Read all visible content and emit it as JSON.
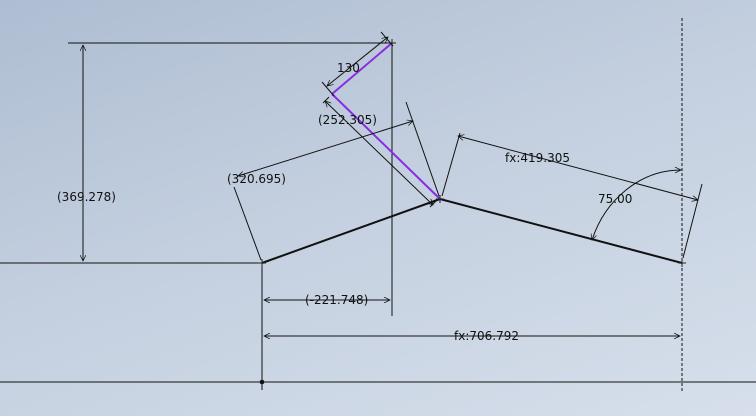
{
  "dimensions": {
    "d_130": "130",
    "d_252": "(252.305)",
    "d_369": "(369.278)",
    "d_320": "(320.695)",
    "d_419": "fx:419.305",
    "d_75": "75.00",
    "d_221": "(-221.748)",
    "d_706": "fx:706.792"
  },
  "colors": {
    "geometry": "#000000",
    "selected": "#8a2be2",
    "background": "#c3cfdf"
  }
}
